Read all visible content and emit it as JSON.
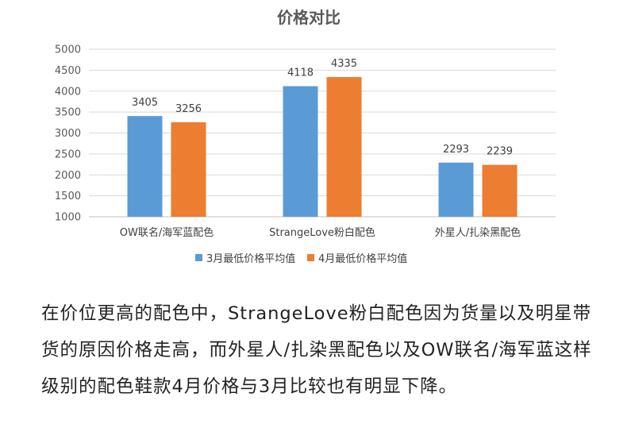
{
  "chart_data": {
    "type": "bar",
    "title": "价格对比",
    "categories": [
      "OW联名/海军蓝配色",
      "StrangeLove粉白配色",
      "外星人/扎染黑配色"
    ],
    "series": [
      {
        "name": "3月最低价格平均值",
        "values": [
          3405,
          4118,
          2293
        ],
        "color": "#5B9BD5"
      },
      {
        "name": "4月最低价格平均值",
        "values": [
          3256,
          4335,
          2239
        ],
        "color": "#ED7D31"
      }
    ],
    "ylim": [
      1000,
      5000
    ],
    "yticks": [
      "1000",
      "1500",
      "2000",
      "2500",
      "3000",
      "3500",
      "4000",
      "4500",
      "5000"
    ],
    "grid": true,
    "legend_position": "bottom"
  },
  "text": {
    "paragraph": "在价位更高的配色中，StrangeLove粉白配色因为货量以及明星带货的原因价格走高，而外星人/扎染黑配色以及OW联名/海军蓝这样级别的配色鞋款4月价格与3月比较也有明显下降。"
  }
}
